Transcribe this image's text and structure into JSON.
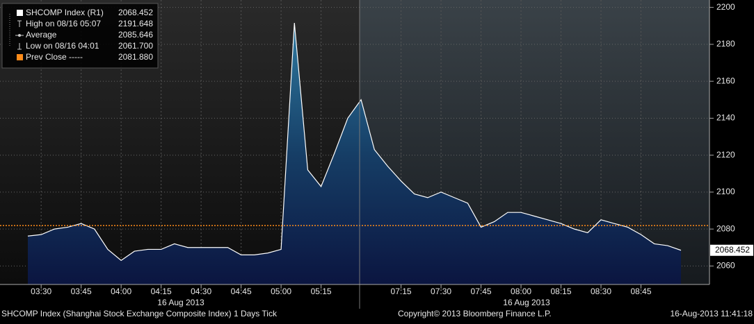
{
  "chart_data": {
    "type": "area",
    "categories": [
      null,
      "03:30",
      null,
      null,
      "03:45",
      null,
      null,
      "04:00",
      null,
      null,
      "04:15",
      null,
      null,
      "04:30",
      null,
      null,
      "04:45",
      null,
      null,
      "05:00",
      null,
      null,
      "05:15",
      null,
      null,
      null,
      null,
      null,
      "07:15",
      null,
      null,
      "07:30",
      null,
      null,
      "07:45",
      null,
      null,
      "08:00",
      null,
      null,
      "08:15",
      null,
      null,
      "08:30",
      null,
      null,
      "08:45",
      null,
      null,
      null
    ],
    "date_labels": [
      "16 Aug 2013",
      "16 Aug 2013"
    ],
    "series": [
      {
        "name": "SHCOMP Index (R1)",
        "color": "#ffffff",
        "values": [
          2076.2,
          2077,
          2080,
          2081,
          2083,
          2080,
          2069,
          2063,
          2068,
          2069,
          2069,
          2072,
          2070,
          2070,
          2070,
          2070,
          2066,
          2066,
          2067,
          2069,
          2191.6,
          2112,
          2103,
          2121,
          2140,
          2150,
          2123,
          2114,
          2106,
          2099,
          2097,
          2100,
          2097,
          2094,
          2081,
          2084,
          2089,
          2089,
          2087,
          2085,
          2083,
          2080,
          2078,
          2085,
          2083,
          2081,
          2077,
          2072,
          2071,
          2068.5
        ]
      }
    ],
    "prev_close": 2081.88,
    "prev_close_color": "#ff8c1a",
    "last_price_label": "2068.452",
    "ylim": [
      2050,
      2204
    ],
    "yticks": [
      2060,
      2080,
      2100,
      2120,
      2140,
      2160,
      2180,
      2200
    ],
    "grid": true,
    "legend": [
      {
        "label": "SHCOMP Index (R1)",
        "value": "2068.452"
      },
      {
        "label": "High on 08/16 05:07",
        "value": "2191.648"
      },
      {
        "label": "Average",
        "value": "2085.646"
      },
      {
        "label": "Low on 08/16 04:01",
        "value": "2061.700"
      },
      {
        "label": "Prev Close -----",
        "value": "2081.880"
      }
    ],
    "footer": {
      "left": "SHCOMP Index (Shanghai Stock Exchange Composite Index) 1 Days  Tick",
      "center": "Copyright© 2013 Bloomberg Finance L.P.",
      "right": "16-Aug-2013 11:41:18"
    }
  }
}
